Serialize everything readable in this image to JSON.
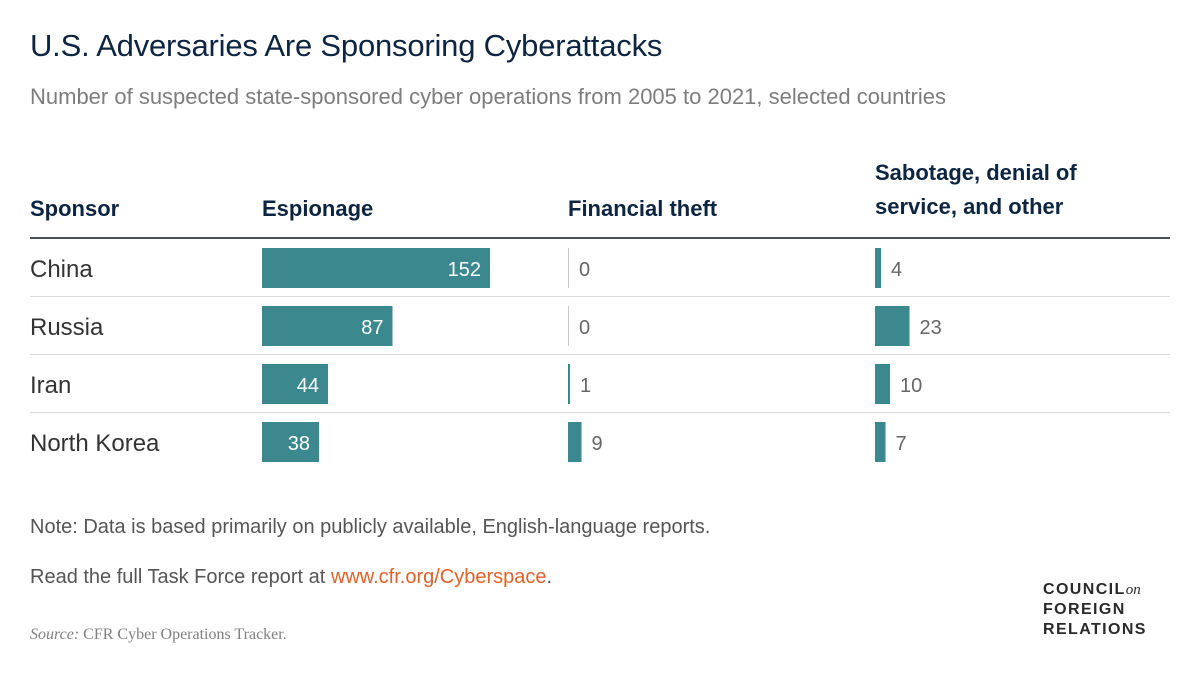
{
  "title": "U.S. Adversaries Are Sponsoring Cyberattacks",
  "subtitle": "Number of suspected state-sponsored cyber operations from 2005 to 2021, selected countries",
  "headers": {
    "sponsor": "Sponsor",
    "espionage": "Espionage",
    "financial": "Financial theft",
    "sabotage_line1": "Sabotage, denial of",
    "sabotage_line2": "service, and other"
  },
  "rows": [
    "China",
    "Russia",
    "Iran",
    "North Korea"
  ],
  "chart_data": {
    "type": "bar",
    "title": "U.S. Adversaries Are Sponsoring Cyberattacks",
    "subtitle": "Number of suspected state-sponsored cyber operations from 2005 to 2021, selected countries",
    "categories": [
      "China",
      "Russia",
      "Iran",
      "North Korea"
    ],
    "series": [
      {
        "name": "Espionage",
        "values": [
          152,
          87,
          44,
          38
        ]
      },
      {
        "name": "Financial theft",
        "values": [
          0,
          0,
          1,
          9
        ]
      },
      {
        "name": "Sabotage, denial of service, and other",
        "values": [
          4,
          23,
          10,
          7
        ]
      }
    ],
    "bar_color": "#3b888e"
  },
  "note": "Note: Data is based primarily on publicly available, English-language reports.",
  "read_more": {
    "prefix": "Read the full Task Force report at ",
    "link": "www.cfr.org/Cyberspace",
    "suffix": "."
  },
  "source": {
    "label": "Source:",
    "text": " CFR Cyber Operations Tracker."
  },
  "logo": {
    "line1": "COUNCIL",
    "on": "on",
    "line2": "FOREIGN",
    "line3": "RELATIONS"
  }
}
